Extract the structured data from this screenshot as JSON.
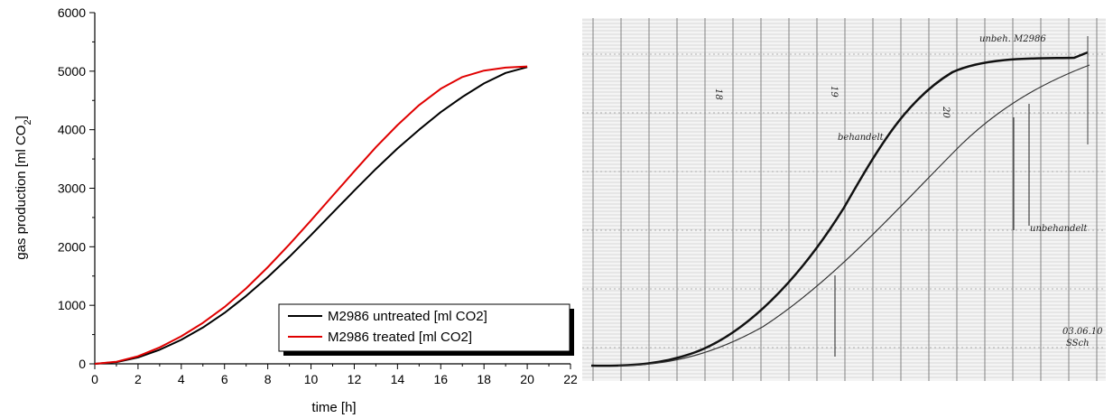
{
  "chart_data": {
    "type": "line",
    "xlabel": "time [h]",
    "ylabel": "gas production [ml CO2]",
    "ylabel_main": "gas production [ml CO",
    "ylabel_sub": "2",
    "ylabel_end": "]",
    "xlim": [
      0,
      22
    ],
    "ylim": [
      0,
      6000
    ],
    "x_ticks": [
      0,
      2,
      4,
      6,
      8,
      10,
      12,
      14,
      16,
      18,
      20,
      22
    ],
    "y_ticks": [
      0,
      1000,
      2000,
      3000,
      4000,
      5000,
      6000
    ],
    "grid": false,
    "legend_position": "bottom-right",
    "series": [
      {
        "name": "M2986 untreated [ml CO2]",
        "color": "#000000",
        "x": [
          0,
          1,
          2,
          3,
          4,
          5,
          6,
          7,
          8,
          9,
          10,
          11,
          12,
          13,
          14,
          15,
          16,
          17,
          18,
          19,
          20
        ],
        "y": [
          0,
          30,
          110,
          240,
          410,
          620,
          870,
          1160,
          1480,
          1830,
          2200,
          2580,
          2960,
          3330,
          3680,
          4000,
          4300,
          4560,
          4790,
          4970,
          5070
        ]
      },
      {
        "name": "M2986 treated [ml CO2]",
        "color": "#e00000",
        "x": [
          0,
          1,
          2,
          3,
          4,
          5,
          6,
          7,
          8,
          9,
          10,
          11,
          12,
          13,
          14,
          15,
          16,
          17,
          18,
          19,
          20
        ],
        "y": [
          0,
          35,
          130,
          280,
          470,
          700,
          970,
          1290,
          1650,
          2040,
          2450,
          2870,
          3290,
          3700,
          4080,
          4420,
          4700,
          4900,
          5010,
          5060,
          5080
        ]
      }
    ]
  },
  "scan": {
    "header_note": "unbeh. M2986",
    "label_treated": "behandelt",
    "label_untreated": "unbehandelt",
    "date_note": "03.06.10",
    "initials": "SSch",
    "hour_18": "18",
    "hour_19": "19",
    "hour_20": "20"
  }
}
